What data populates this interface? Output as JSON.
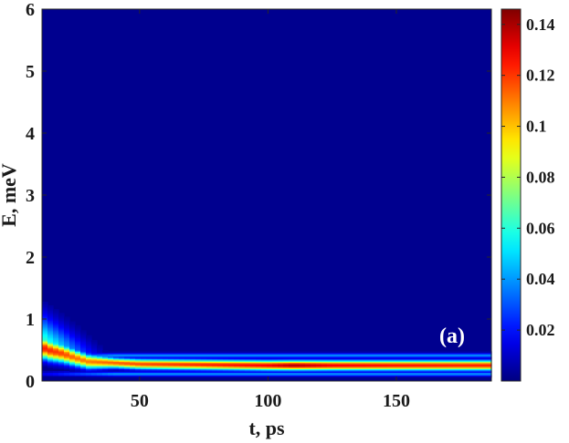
{
  "chart_data": {
    "type": "heatmap",
    "title": "",
    "panel_label": "(a)",
    "xlabel": "t, ps",
    "ylabel": "E, meV",
    "xlim": [
      12,
      187
    ],
    "ylim": [
      0,
      6
    ],
    "xticks": [
      50,
      100,
      150
    ],
    "yticks": [
      0,
      1,
      2,
      3,
      4,
      5,
      6
    ],
    "colormap": "jet",
    "colorbar": {
      "range": [
        0,
        0.146
      ],
      "ticks": [
        0.02,
        0.04,
        0.06,
        0.08,
        0.1,
        0.12,
        0.14
      ],
      "tick_labels": [
        "0.02",
        "0.04",
        "0.06",
        "0.08",
        "0.1",
        "0.12",
        "0.14"
      ]
    },
    "background_value": 0.0,
    "ridges": [
      {
        "description_points": "centre energy (meV) and peak value along t",
        "t": [
          12,
          15,
          20,
          25,
          30,
          40,
          50,
          75,
          100,
          110,
          125,
          150,
          175,
          187
        ],
        "E": [
          0.55,
          0.5,
          0.45,
          0.38,
          0.32,
          0.3,
          0.28,
          0.27,
          0.26,
          0.26,
          0.26,
          0.26,
          0.26,
          0.26
        ],
        "peak": [
          0.125,
          0.122,
          0.118,
          0.112,
          0.11,
          0.115,
          0.118,
          0.124,
          0.13,
          0.14,
          0.13,
          0.127,
          0.125,
          0.125
        ]
      }
    ],
    "outer_band_E": [
      0.12,
      0.42
    ],
    "outer_band_value": 0.04
  }
}
